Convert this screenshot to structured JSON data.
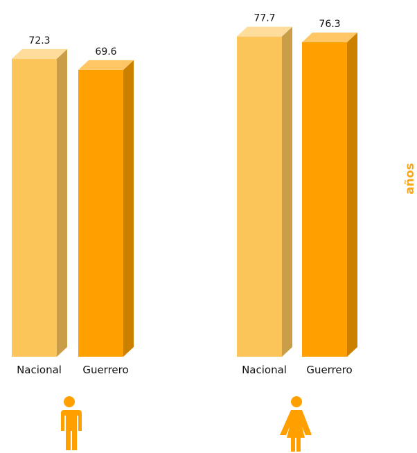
{
  "chart_data": {
    "type": "bar",
    "y_label": "años",
    "categories": [
      "Nacional",
      "Guerrero",
      "Nacional",
      "Guerrero"
    ],
    "values": [
      72.3,
      69.6,
      77.7,
      76.3
    ],
    "colors": [
      "#fcc55a",
      "#ffa000",
      "#fcc55a",
      "#ffa000"
    ]
  }
}
